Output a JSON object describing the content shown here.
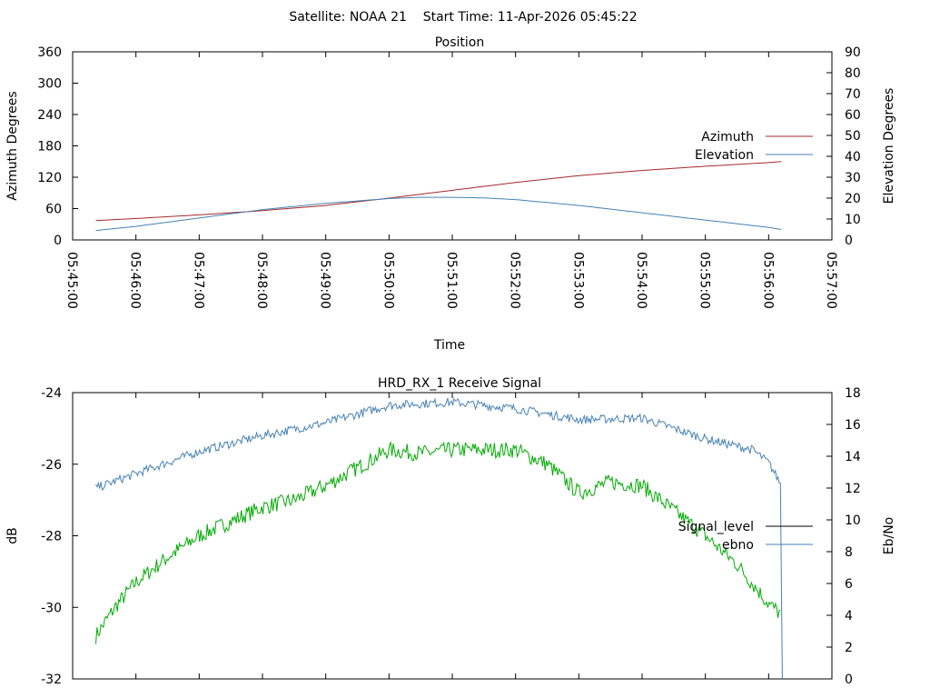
{
  "header": "Satellite: NOAA 21    Start Time: 11-Apr-2026 05:45:22",
  "chart_data": [
    {
      "type": "line",
      "title": "Position",
      "xlabel": "Time",
      "ylabel": "Azimuth Degrees",
      "y2label": "Elevation Degrees",
      "xlim_minutes": [
        "05:45:00",
        "05:57:00"
      ],
      "x_ticks": [
        "05:45:00",
        "05:46:00",
        "05:47:00",
        "05:48:00",
        "05:49:00",
        "05:50:00",
        "05:51:00",
        "05:52:00",
        "05:53:00",
        "05:54:00",
        "05:55:00",
        "05:56:00",
        "05:57:00"
      ],
      "ylim": [
        0,
        360
      ],
      "y_ticks": [
        "0",
        "60",
        "120",
        "180",
        "240",
        "300",
        "360"
      ],
      "y2lim": [
        0,
        90
      ],
      "y2_ticks": [
        "0",
        "10",
        "20",
        "30",
        "40",
        "50",
        "60",
        "70",
        "80",
        "90"
      ],
      "legend_position": "right",
      "series": [
        {
          "name": "Azimuth",
          "axis": "left",
          "color": "#a52a2a",
          "x": [
            "05:45:22",
            "05:46:00",
            "05:47:00",
            "05:48:00",
            "05:49:00",
            "05:50:00",
            "05:51:00",
            "05:52:00",
            "05:53:00",
            "05:54:00",
            "05:55:00",
            "05:56:00",
            "05:56:12"
          ],
          "y": [
            37,
            41,
            48,
            56,
            66,
            80,
            95,
            110,
            123,
            133,
            141,
            148,
            150
          ]
        },
        {
          "name": "Elevation",
          "axis": "right",
          "color": "#4682b4",
          "x": [
            "05:45:22",
            "05:46:00",
            "05:47:00",
            "05:48:00",
            "05:49:00",
            "05:50:00",
            "05:50:30",
            "05:51:00",
            "05:51:30",
            "05:52:00",
            "05:53:00",
            "05:54:00",
            "05:55:00",
            "05:56:00",
            "05:56:12"
          ],
          "y": [
            4.5,
            6.5,
            10.5,
            14.5,
            17.5,
            19.8,
            20.4,
            20.4,
            20.1,
            19.3,
            16.5,
            13,
            9.5,
            6,
            5
          ]
        }
      ]
    },
    {
      "type": "line",
      "title": "HRD_RX_1 Receive Signal",
      "ylabel": "dB",
      "y2label": "Eb/No",
      "ylim": [
        -32,
        -24
      ],
      "y_ticks": [
        "-24",
        "-26",
        "-28",
        "-30",
        "-32"
      ],
      "y2lim": [
        0,
        18
      ],
      "y2_ticks": [
        "0",
        "2",
        "4",
        "6",
        "8",
        "10",
        "12",
        "14",
        "16",
        "18"
      ],
      "legend_position": "right",
      "series": [
        {
          "name": "Signal_level",
          "axis": "left",
          "color": "#000000",
          "x": [],
          "y": []
        },
        {
          "name": "ebno",
          "axis": "right",
          "color": "#4682b4",
          "x": [
            "05:45:22",
            "05:46:00",
            "05:47:00",
            "05:48:00",
            "05:49:00",
            "05:50:00",
            "05:51:00",
            "05:52:00",
            "05:53:00",
            "05:54:00",
            "05:55:00",
            "05:55:45",
            "05:56:00",
            "05:56:12",
            "05:56:13"
          ],
          "y": [
            12.0,
            12.9,
            14.3,
            15.3,
            16.1,
            17.2,
            17.4,
            17.0,
            16.3,
            16.4,
            15.1,
            14.4,
            13.6,
            12.2,
            0
          ]
        },
        {
          "name": "",
          "axis": "left",
          "color": "#00aa00",
          "x": [
            "05:45:22",
            "05:45:40",
            "05:46:00",
            "05:46:30",
            "05:47:00",
            "05:47:30",
            "05:48:00",
            "05:48:30",
            "05:49:00",
            "05:49:30",
            "05:50:00",
            "05:50:30",
            "05:51:00",
            "05:51:30",
            "05:52:00",
            "05:52:30",
            "05:53:00",
            "05:53:30",
            "05:54:00",
            "05:54:30",
            "05:55:00",
            "05:55:30",
            "05:56:00",
            "05:56:12"
          ],
          "y": [
            -30.8,
            -30.0,
            -29.3,
            -28.6,
            -28.0,
            -27.6,
            -27.2,
            -27.0,
            -26.6,
            -26.1,
            -25.6,
            -25.7,
            -25.6,
            -25.6,
            -25.6,
            -26.0,
            -26.8,
            -26.5,
            -26.6,
            -27.3,
            -28.0,
            -28.8,
            -29.9,
            -30.2
          ]
        }
      ]
    }
  ]
}
